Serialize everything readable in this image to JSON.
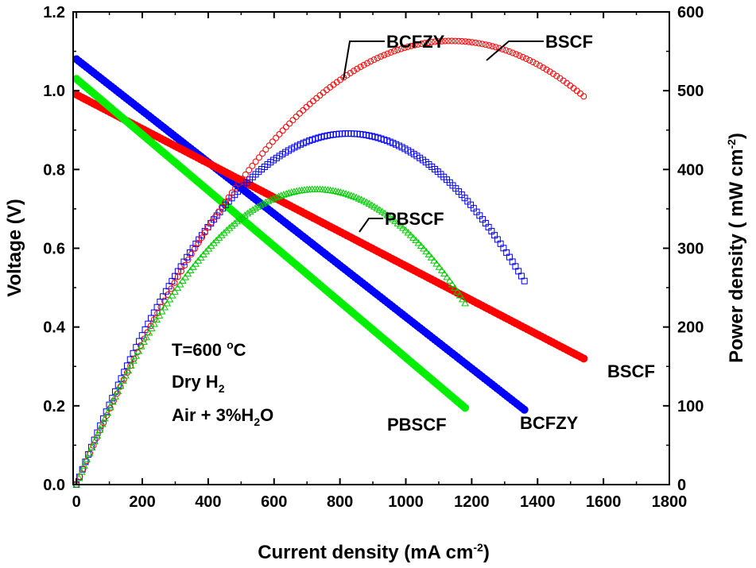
{
  "chart_data": {
    "type": "line",
    "title": "",
    "xlabel": {
      "main": "Current density (mA cm",
      "sup": "-2",
      "end": ")"
    },
    "ylabel_left": "Voltage (V)",
    "ylabel_right": {
      "main": "Power density ( mW cm",
      "sup": "-2",
      "end": ")"
    },
    "xlim": [
      -10,
      1800
    ],
    "ylim_left": [
      0.0,
      1.2
    ],
    "ylim_right": [
      0,
      600
    ],
    "x_ticks": [
      "0",
      "200",
      "400",
      "600",
      "800",
      "1000",
      "1200",
      "1400",
      "1600",
      "1800"
    ],
    "y_left_ticks": [
      "0.0",
      "0.2",
      "0.4",
      "0.6",
      "0.8",
      "1.0",
      "1.2"
    ],
    "y_right_ticks": [
      "0",
      "100",
      "200",
      "300",
      "400",
      "500",
      "600"
    ],
    "annotation": {
      "line1": {
        "main": "T=600 ",
        "sup": "o",
        "end": "C"
      },
      "line2": {
        "main": "Dry H",
        "sub": "2"
      },
      "line3": {
        "main": "Air + 3%H",
        "sub": "2",
        "end": "O"
      }
    },
    "series": [
      {
        "name": "BCFZY",
        "color": "#0000ff",
        "axis": "left",
        "kind": "voltage",
        "x": [
          0,
          1360
        ],
        "y": [
          1.08,
          0.19
        ]
      },
      {
        "name": "BSCF",
        "color": "#ff0000",
        "axis": "left",
        "kind": "voltage",
        "x": [
          0,
          1540
        ],
        "y": [
          0.99,
          0.32
        ]
      },
      {
        "name": "PBSCF",
        "color": "#00ee00",
        "axis": "left",
        "kind": "voltage",
        "x": [
          0,
          1180
        ],
        "y": [
          1.03,
          0.195
        ]
      },
      {
        "name": "BCFZY",
        "color": "#0000ff",
        "axis": "right",
        "kind": "power",
        "x": [
          0,
          1360
        ],
        "y": [
          0,
          270
        ]
      },
      {
        "name": "BSCF",
        "color": "#ff0000",
        "axis": "right",
        "kind": "power",
        "x": [
          0,
          1540
        ],
        "y": [
          0,
          495
        ]
      },
      {
        "name": "PBSCF",
        "color": "#00cc00",
        "axis": "right",
        "kind": "power",
        "x": [
          0,
          1180
        ],
        "y": [
          0,
          230
        ]
      }
    ],
    "series_labels": [
      {
        "name": "BCFZY",
        "kind": "power"
      },
      {
        "name": "BSCF",
        "kind": "power"
      },
      {
        "name": "PBSCF",
        "kind": "power"
      },
      {
        "name": "BSCF",
        "kind": "voltage"
      },
      {
        "name": "BCFZY",
        "kind": "voltage"
      },
      {
        "name": "PBSCF",
        "kind": "voltage"
      }
    ]
  }
}
